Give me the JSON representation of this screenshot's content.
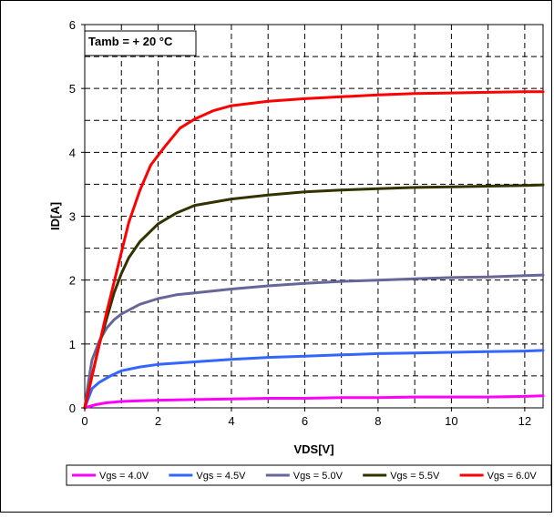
{
  "chart_data": {
    "type": "line",
    "xlabel": "VDS[V]",
    "ylabel": "ID[A]",
    "xlim": [
      0,
      12.5
    ],
    "ylim": [
      0,
      6
    ],
    "xticks": [
      "0",
      "2",
      "4",
      "6",
      "8",
      "10",
      "12"
    ],
    "yticks": [
      "0",
      "1",
      "2",
      "3",
      "4",
      "5",
      "6"
    ],
    "grid": "dashed, both axes, minor at 0.5 A and 1 V",
    "legend_position": "bottom",
    "annotation": "Tamb = + 20 °C",
    "series": [
      {
        "name": "Vgs = 4.0V",
        "color": "#ff00ff",
        "points": [
          [
            0,
            0
          ],
          [
            0.3,
            0.05
          ],
          [
            0.6,
            0.08
          ],
          [
            1,
            0.1
          ],
          [
            1.5,
            0.11
          ],
          [
            2,
            0.12
          ],
          [
            3,
            0.13
          ],
          [
            4,
            0.14
          ],
          [
            5,
            0.15
          ],
          [
            6,
            0.15
          ],
          [
            7,
            0.16
          ],
          [
            8,
            0.16
          ],
          [
            9,
            0.17
          ],
          [
            10,
            0.17
          ],
          [
            11,
            0.17
          ],
          [
            12,
            0.18
          ],
          [
            12.5,
            0.19
          ]
        ]
      },
      {
        "name": "Vgs = 4.5V",
        "color": "#3366ff",
        "points": [
          [
            0,
            0
          ],
          [
            0.1,
            0.15
          ],
          [
            0.2,
            0.3
          ],
          [
            0.4,
            0.4
          ],
          [
            0.7,
            0.5
          ],
          [
            1,
            0.58
          ],
          [
            1.5,
            0.64
          ],
          [
            2,
            0.68
          ],
          [
            3,
            0.72
          ],
          [
            4,
            0.76
          ],
          [
            5,
            0.79
          ],
          [
            6,
            0.81
          ],
          [
            7,
            0.83
          ],
          [
            8,
            0.85
          ],
          [
            9,
            0.86
          ],
          [
            10,
            0.87
          ],
          [
            11,
            0.88
          ],
          [
            12,
            0.89
          ],
          [
            12.5,
            0.9
          ]
        ]
      },
      {
        "name": "Vgs = 5.0V",
        "color": "#666699",
        "points": [
          [
            0,
            0
          ],
          [
            0.1,
            0.4
          ],
          [
            0.2,
            0.75
          ],
          [
            0.4,
            1.05
          ],
          [
            0.6,
            1.25
          ],
          [
            0.8,
            1.38
          ],
          [
            1,
            1.47
          ],
          [
            1.5,
            1.62
          ],
          [
            2,
            1.71
          ],
          [
            2.5,
            1.77
          ],
          [
            3,
            1.8
          ],
          [
            4,
            1.86
          ],
          [
            5,
            1.91
          ],
          [
            6,
            1.95
          ],
          [
            7,
            1.98
          ],
          [
            8,
            2.0
          ],
          [
            9,
            2.02
          ],
          [
            10,
            2.04
          ],
          [
            11,
            2.05
          ],
          [
            12,
            2.07
          ],
          [
            12.5,
            2.08
          ]
        ]
      },
      {
        "name": "Vgs = 5.5V",
        "color": "#333300",
        "points": [
          [
            0,
            0
          ],
          [
            0.2,
            0.5
          ],
          [
            0.4,
            1.0
          ],
          [
            0.6,
            1.4
          ],
          [
            0.8,
            1.8
          ],
          [
            1,
            2.1
          ],
          [
            1.2,
            2.35
          ],
          [
            1.5,
            2.6
          ],
          [
            2,
            2.88
          ],
          [
            2.5,
            3.05
          ],
          [
            3,
            3.17
          ],
          [
            4,
            3.27
          ],
          [
            5,
            3.33
          ],
          [
            6,
            3.38
          ],
          [
            7,
            3.41
          ],
          [
            8,
            3.43
          ],
          [
            9,
            3.45
          ],
          [
            10,
            3.46
          ],
          [
            11,
            3.47
          ],
          [
            12,
            3.48
          ],
          [
            12.5,
            3.49
          ]
        ]
      },
      {
        "name": "Vgs = 6.0V",
        "color": "#ff0000",
        "points": [
          [
            0,
            0
          ],
          [
            0.3,
            0.75
          ],
          [
            0.6,
            1.5
          ],
          [
            0.9,
            2.2
          ],
          [
            1.2,
            2.9
          ],
          [
            1.5,
            3.4
          ],
          [
            1.8,
            3.8
          ],
          [
            2.2,
            4.1
          ],
          [
            2.6,
            4.38
          ],
          [
            3,
            4.52
          ],
          [
            3.5,
            4.65
          ],
          [
            4,
            4.73
          ],
          [
            5,
            4.8
          ],
          [
            6,
            4.84
          ],
          [
            7,
            4.87
          ],
          [
            8,
            4.9
          ],
          [
            9,
            4.92
          ],
          [
            10,
            4.93
          ],
          [
            11,
            4.94
          ],
          [
            12,
            4.95
          ],
          [
            12.5,
            4.95
          ]
        ]
      }
    ]
  }
}
